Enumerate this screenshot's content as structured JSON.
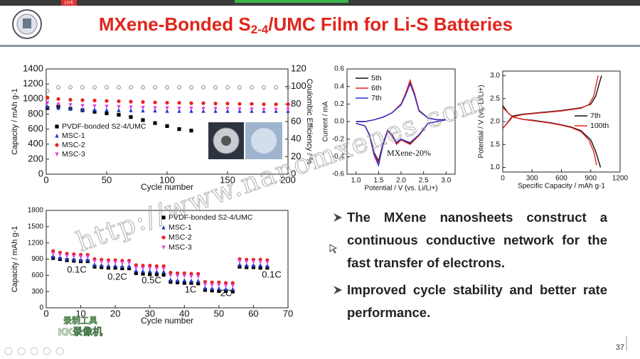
{
  "top_bar": {
    "badge": "LIVE"
  },
  "title": {
    "main": "MXene-Bonded S",
    "sub": "2-4",
    "rest": "/UMC Film for Li-S Batteries"
  },
  "charts": [
    {
      "type": "scatter",
      "xlabel": "Cycle number",
      "ylabel": "Capacity / mAh g-1",
      "y2label": "Coulombic Efficiency / %",
      "xlim": [
        0,
        200
      ],
      "xticks": [
        0,
        50,
        100,
        150,
        200
      ],
      "ylim": [
        0,
        1400
      ],
      "yticks": [
        0,
        200,
        400,
        600,
        800,
        1000,
        1200,
        1400
      ],
      "y2lim": [
        0,
        120
      ],
      "y2ticks": [
        0,
        20,
        40,
        60,
        80,
        100,
        120
      ],
      "x": [
        1,
        10,
        20,
        30,
        40,
        50,
        60,
        70,
        80,
        90,
        100,
        110,
        120,
        130,
        140,
        150,
        160,
        170,
        180,
        190,
        200
      ],
      "series": [
        {
          "name": "PVDF-bonded S2-4/UMC",
          "color": "#000000",
          "marker": "square",
          "values": [
            880,
            900,
            870,
            850,
            830,
            810,
            790,
            760,
            720,
            680,
            640,
            600,
            580,
            null,
            null,
            null,
            null,
            null,
            null,
            null,
            null
          ]
        },
        {
          "name": "MSC-1",
          "color": "#1f3bd1",
          "marker": "triangle",
          "values": [
            900,
            880,
            870,
            860,
            860,
            855,
            850,
            850,
            845,
            845,
            840,
            840,
            840,
            840,
            840,
            840,
            840,
            840,
            840,
            840,
            840
          ]
        },
        {
          "name": "MSC-2",
          "color": "#e8231f",
          "marker": "circle",
          "values": [
            1020,
            1000,
            990,
            985,
            980,
            975,
            970,
            965,
            960,
            955,
            950,
            950,
            945,
            945,
            940,
            940,
            935,
            935,
            930,
            930,
            930
          ]
        },
        {
          "name": "MSC-3",
          "color": "#e040e0",
          "marker": "triangle-down",
          "values": [
            950,
            930,
            920,
            910,
            905,
            900,
            895,
            890,
            885,
            880,
            880,
            875,
            875,
            870,
            870,
            870,
            865,
            865,
            860,
            860,
            860
          ]
        }
      ],
      "y2_series": [
        {
          "color": "#8a8a8a",
          "axis": "y2",
          "values": [
            95,
            99,
            99,
            99,
            99,
            99,
            99,
            99,
            99,
            99,
            99,
            99,
            99,
            99,
            99,
            99,
            99,
            99,
            99,
            99,
            99
          ]
        }
      ]
    },
    {
      "type": "line",
      "xlabel": "Potential / V (vs. Li/Li+)",
      "ylabel": "Current / mA",
      "xlim": [
        0.8,
        3.2
      ],
      "xticks": [
        {
          "value": 1,
          "label": "1.0"
        },
        1.5,
        {
          "value": 2,
          "label": "2.0"
        },
        2.5,
        {
          "value": 3,
          "label": "3.0"
        }
      ],
      "ylim": [
        -0.6,
        0.6
      ],
      "yticks": [
        -0.6,
        -0.4,
        -0.2,
        {
          "value": 0,
          "label": "0.0"
        },
        0.2,
        0.4,
        0.6
      ],
      "annotations": [
        "MXene-20%"
      ],
      "x": [
        1.0,
        1.2,
        1.4,
        1.6,
        1.8,
        2.0,
        2.1,
        2.2,
        2.3,
        2.4,
        2.6,
        2.8,
        3.0,
        2.8,
        2.6,
        2.4,
        2.2,
        2.0,
        1.9,
        1.8,
        1.7,
        1.6,
        1.5,
        1.4,
        1.3,
        1.2,
        1.0
      ],
      "series": [
        {
          "name": "5th",
          "color": "#111111",
          "values": [
            0.0,
            0.0,
            0.02,
            0.05,
            0.1,
            0.2,
            0.3,
            0.45,
            0.3,
            0.12,
            0.04,
            0.02,
            0.02,
            0.0,
            -0.02,
            -0.15,
            -0.25,
            -0.2,
            -0.25,
            -0.15,
            -0.1,
            -0.25,
            -0.45,
            -0.35,
            -0.15,
            -0.05,
            -0.02
          ]
        },
        {
          "name": "6th",
          "color": "#e8231f",
          "values": [
            0.0,
            0.0,
            0.02,
            0.05,
            0.1,
            0.2,
            0.32,
            0.47,
            0.32,
            0.13,
            0.04,
            0.02,
            0.02,
            0.0,
            -0.02,
            -0.16,
            -0.26,
            -0.21,
            -0.26,
            -0.16,
            -0.11,
            -0.27,
            -0.47,
            -0.36,
            -0.15,
            -0.05,
            -0.02
          ]
        },
        {
          "name": "7th",
          "color": "#3030d0",
          "values": [
            0.0,
            0.0,
            0.02,
            0.05,
            0.1,
            0.19,
            0.3,
            0.43,
            0.3,
            0.12,
            0.04,
            0.02,
            0.02,
            0.0,
            -0.02,
            -0.15,
            -0.24,
            -0.2,
            -0.24,
            -0.15,
            -0.1,
            -0.26,
            -0.5,
            -0.38,
            -0.16,
            -0.05,
            -0.02
          ]
        }
      ]
    },
    {
      "type": "line",
      "xlabel": "Specific Capacity / mAh g-1",
      "ylabel": "Potential / V (vs. Li/Li+)",
      "xlim": [
        0,
        1200
      ],
      "xticks": [
        0,
        300,
        600,
        900,
        1200
      ],
      "ylim": [
        0.9,
        3.1
      ],
      "yticks": [
        {
          "value": 1,
          "label": "1.0"
        },
        1.5,
        {
          "value": 2,
          "label": "2.0"
        },
        2.5,
        {
          "value": 3,
          "label": "3.0"
        }
      ],
      "series": [
        {
          "name": "7th",
          "color": "#111111",
          "x": [
            0,
            50,
            100,
            200,
            300,
            400,
            500,
            600,
            700,
            800,
            900,
            950,
            1000,
            null,
            0,
            100,
            200,
            300,
            400,
            500,
            600,
            700,
            800,
            900,
            950,
            990,
            1010
          ],
          "values": [
            2.35,
            2.2,
            2.1,
            2.05,
            2.03,
            2.0,
            1.97,
            1.93,
            1.88,
            1.8,
            1.6,
            1.35,
            1.0,
            null,
            1.85,
            2.12,
            2.16,
            2.18,
            2.2,
            2.22,
            2.24,
            2.27,
            2.3,
            2.38,
            2.55,
            2.85,
            3.0
          ]
        },
        {
          "name": "100th",
          "color": "#e8231f",
          "x": [
            0,
            50,
            100,
            200,
            300,
            400,
            500,
            600,
            700,
            800,
            880,
            930,
            960,
            null,
            0,
            100,
            200,
            300,
            400,
            500,
            600,
            700,
            800,
            880,
            930,
            960,
            975
          ],
          "values": [
            2.3,
            2.2,
            2.1,
            2.05,
            2.02,
            1.99,
            1.96,
            1.92,
            1.87,
            1.78,
            1.6,
            1.35,
            1.05,
            null,
            1.85,
            2.1,
            2.15,
            2.17,
            2.19,
            2.21,
            2.23,
            2.26,
            2.29,
            2.37,
            2.55,
            2.85,
            3.0
          ]
        }
      ]
    },
    {
      "type": "scatter",
      "xlabel": "Cycle number",
      "ylabel": "Capacity / mAh g-1",
      "xlim": [
        0,
        70
      ],
      "xticks": [
        0,
        10,
        20,
        30,
        40,
        50,
        60,
        70
      ],
      "ylim": [
        0,
        1800
      ],
      "yticks": [
        0,
        300,
        600,
        900,
        1200,
        1500,
        1800
      ],
      "annotations": [
        "0.1C",
        "0.2C",
        "0.5C",
        "1C",
        "2C",
        "0.1C"
      ],
      "x": [
        2,
        4,
        6,
        8,
        10,
        12,
        14,
        16,
        18,
        20,
        22,
        24,
        26,
        28,
        30,
        32,
        34,
        36,
        38,
        40,
        42,
        44,
        46,
        48,
        50,
        52,
        54,
        56,
        58,
        60,
        62,
        64
      ],
      "series": [
        {
          "name": "PVDF-bonded S2-4/UMC",
          "color": "#000000",
          "marker": "square",
          "values": [
            920,
            900,
            880,
            870,
            860,
            860,
            760,
            750,
            740,
            740,
            730,
            730,
            640,
            630,
            620,
            620,
            610,
            480,
            470,
            460,
            460,
            450,
            330,
            320,
            310,
            310,
            300,
            760,
            750,
            750,
            740,
            740
          ]
        },
        {
          "name": "MSC-1",
          "color": "#1f3bd1",
          "marker": "triangle",
          "values": [
            950,
            930,
            910,
            900,
            890,
            890,
            800,
            790,
            780,
            780,
            770,
            770,
            690,
            680,
            680,
            670,
            670,
            520,
            510,
            510,
            500,
            500,
            370,
            360,
            360,
            350,
            350,
            800,
            790,
            790,
            790,
            780
          ]
        },
        {
          "name": "MSC-2",
          "color": "#e8231f",
          "marker": "circle",
          "values": [
            1050,
            1020,
            1000,
            990,
            980,
            980,
            900,
            890,
            880,
            880,
            870,
            870,
            790,
            780,
            780,
            770,
            770,
            650,
            640,
            640,
            630,
            630,
            480,
            470,
            470,
            460,
            460,
            900,
            890,
            890,
            890,
            880
          ]
        },
        {
          "name": "MSC-3",
          "color": "#e040e0",
          "marker": "triangle-down",
          "values": [
            1000,
            980,
            960,
            950,
            940,
            940,
            860,
            850,
            840,
            840,
            830,
            830,
            740,
            730,
            730,
            720,
            720,
            600,
            590,
            590,
            580,
            580,
            430,
            420,
            420,
            410,
            410,
            860,
            850,
            850,
            850,
            840
          ]
        }
      ]
    }
  ],
  "bullets": [
    "The MXene nanosheets construct a continuous conductive network for the fast transfer of electrons.",
    "Improved cycle stability and better rate performance."
  ],
  "watermark": "http://www.nanomxenes.com",
  "recorder": [
    "录制工具",
    "KK录像机"
  ],
  "page_number": "37"
}
